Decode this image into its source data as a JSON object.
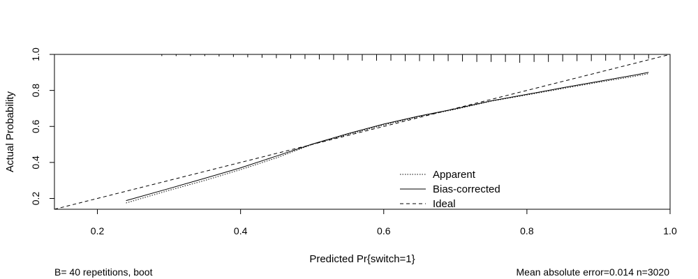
{
  "chart_data": {
    "type": "line",
    "title": "",
    "xlabel": "Predicted Pr{switch=1}",
    "ylabel": "Actual Probability",
    "xlim": [
      0.14,
      1.0
    ],
    "ylim": [
      0.14,
      1.0
    ],
    "x_ticks": [
      0.2,
      0.4,
      0.6,
      0.8,
      1.0
    ],
    "x_tick_labels": [
      "0.2",
      "0.4",
      "0.6",
      "0.8",
      "1.0"
    ],
    "y_ticks": [
      0.2,
      0.4,
      0.6,
      0.8,
      1.0
    ],
    "y_tick_labels": [
      "0.2",
      "0.4",
      "0.6",
      "0.8",
      "1.0"
    ],
    "grid": false,
    "legend_position": "bottom-right",
    "series": [
      {
        "name": "Apparent",
        "style": "dotted",
        "x": [
          0.24,
          0.3,
          0.35,
          0.4,
          0.45,
          0.5,
          0.55,
          0.6,
          0.65,
          0.7,
          0.75,
          0.8,
          0.85,
          0.9,
          0.95,
          0.97
        ],
        "y": [
          0.175,
          0.245,
          0.3,
          0.36,
          0.425,
          0.5,
          0.555,
          0.608,
          0.655,
          0.695,
          0.74,
          0.775,
          0.81,
          0.845,
          0.878,
          0.893
        ]
      },
      {
        "name": "Bias-corrected",
        "style": "solid",
        "x": [
          0.24,
          0.3,
          0.35,
          0.4,
          0.45,
          0.5,
          0.55,
          0.6,
          0.65,
          0.7,
          0.75,
          0.8,
          0.85,
          0.9,
          0.95,
          0.97
        ],
        "y": [
          0.188,
          0.255,
          0.312,
          0.37,
          0.435,
          0.502,
          0.56,
          0.613,
          0.658,
          0.698,
          0.742,
          0.778,
          0.815,
          0.85,
          0.885,
          0.9
        ]
      },
      {
        "name": "Ideal",
        "style": "dashed",
        "x": [
          0.14,
          1.0
        ],
        "y": [
          0.14,
          1.0
        ]
      }
    ],
    "rug_ticks": [
      0.29,
      0.31,
      0.33,
      0.35,
      0.37,
      0.39,
      0.41,
      0.43,
      0.45,
      0.47,
      0.49,
      0.51,
      0.53,
      0.55,
      0.57,
      0.59,
      0.61,
      0.63,
      0.65,
      0.67,
      0.69,
      0.71,
      0.73,
      0.75,
      0.77,
      0.79,
      0.81,
      0.83,
      0.85,
      0.87,
      0.89,
      0.91,
      0.93,
      0.95,
      0.97
    ],
    "rug_heights": [
      0.2,
      0.2,
      0.2,
      0.2,
      0.25,
      0.3,
      0.35,
      0.4,
      0.45,
      0.5,
      0.55,
      0.6,
      0.65,
      0.7,
      0.75,
      0.75,
      0.75,
      0.8,
      0.8,
      0.8,
      0.8,
      0.85,
      0.9,
      0.9,
      0.9,
      1.0,
      0.9,
      0.9,
      0.85,
      0.8,
      0.8,
      0.75,
      0.7,
      0.6,
      0.5
    ],
    "footer_left": "B= 40 repetitions, boot",
    "footer_right": "Mean absolute error=0.014 n=3020"
  }
}
